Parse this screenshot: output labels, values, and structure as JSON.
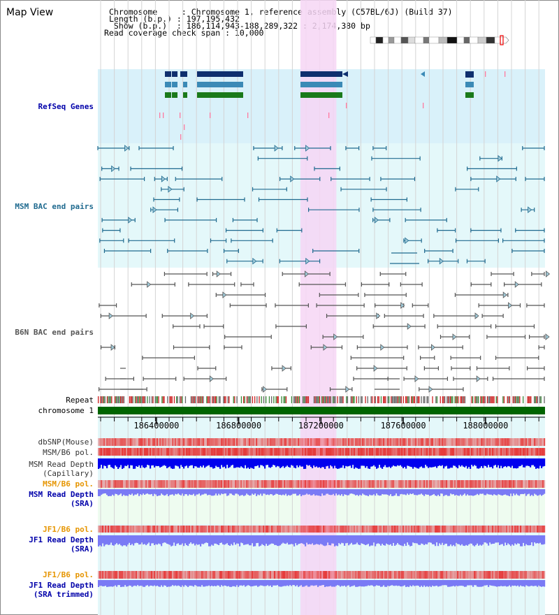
{
  "header": {
    "title": "Map View",
    "info_lines": [
      "Chromosome     : Chromosome 1, reference assembly (C57BL/6J) (Build 37)",
      "Length (b.p.) : 197,195,432",
      " Show (b.p.)  : 186,114,943-188,289,322 : 2,174,380 bp",
      "Read coverage check span : 10,000"
    ]
  },
  "view": {
    "start": 186114943,
    "end": 188289322
  },
  "highlight": {
    "start": 187100000,
    "end": 187275000,
    "color": "#f6d6f4"
  },
  "tracks": {
    "refseq": {
      "label": "RefSeq Genes",
      "color": "#0000aa",
      "bg": "#d9f1fa"
    },
    "msm_bac": {
      "label": "MSM BAC end pairs",
      "color": "#1f6a8f",
      "bg": "#e4f8fa"
    },
    "b6n_bac": {
      "label": "B6N BAC end pairs",
      "color": "#555555",
      "bg": "#ffffff"
    },
    "repeat": {
      "label": "Repeat"
    },
    "chromosome": {
      "label": "chromosome 1",
      "color": "#006400"
    },
    "dbsnp": {
      "label": "dbSNP(Mouse)",
      "color": "#333333"
    },
    "msm_pol": {
      "label": "MSM/B6 pol.",
      "color": "#333333"
    },
    "msm_depth_cap": {
      "label1": "MSM Read Depth",
      "label2": "(Capillary)",
      "color": "#333333"
    },
    "msm_pol2": {
      "label": "MSM/B6 pol.",
      "color": "#e69500"
    },
    "msm_depth_sra": {
      "label1": "MSM Read Depth",
      "label2": "(SRA)",
      "color": "#0000aa"
    },
    "jf1_pol": {
      "label": "JF1/B6 pol.",
      "color": "#e69500"
    },
    "jf1_depth_sra": {
      "label1": "JF1 Read Depth",
      "label2": "(SRA)",
      "color": "#0000aa"
    },
    "jf1_pol2": {
      "label": "JF1/B6 pol.",
      "color": "#e69500"
    },
    "jf1_depth_trim": {
      "label1": "JF1 Read Depth",
      "label2": "(SRA trimmed)",
      "color": "#0000aa"
    }
  },
  "axis": {
    "ticks": [
      {
        "pos": 186400000,
        "label": "186400000"
      },
      {
        "pos": 186800000,
        "label": "186800000"
      },
      {
        "pos": 187200000,
        "label": "187200000"
      },
      {
        "pos": 187600000,
        "label": "187600000"
      },
      {
        "pos": 188000000,
        "label": "188000000"
      }
    ]
  },
  "colors": {
    "gene_navy": "#0f2f6e",
    "gene_teal": "#3b8ab6",
    "gene_green": "#1a7a1a",
    "depth_blue": "#0000ee",
    "depth_light": "#7a7af5",
    "snp_red": "#e63b3b"
  },
  "icons": {
    "ideogram": "chromosome-ideogram-icon",
    "arrow": "bac-end-arrow-icon"
  }
}
